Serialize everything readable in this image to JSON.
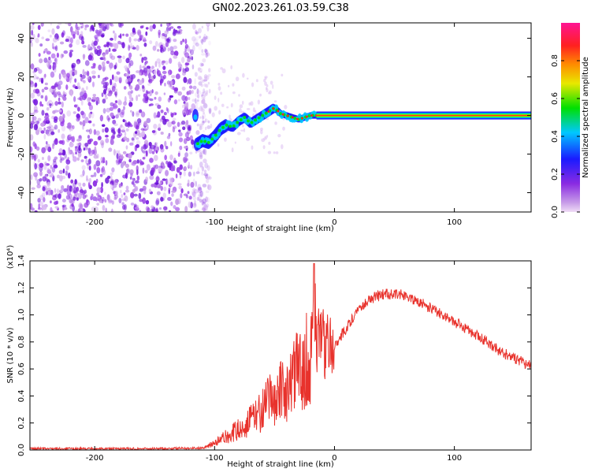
{
  "title": "GN02.2023.261.03.59.C38",
  "chart_data": [
    {
      "type": "heatmap",
      "xlabel": "Height of straight line (km)",
      "ylabel": "Frequency (Hz)",
      "xlim": [
        -254,
        164
      ],
      "ylim": [
        -50,
        48
      ],
      "x_ticks": [
        -200,
        -100,
        0,
        100
      ],
      "y_ticks": [
        -40,
        -20,
        0,
        20,
        40
      ],
      "colorbar": {
        "label": "Normalized spectral amplitude",
        "range": [
          0,
          1
        ],
        "ticks": [
          "0.0",
          "0.2",
          "0.4",
          "0.6",
          "0.8"
        ],
        "colors": [
          "#f0dcf6",
          "#8a2be2",
          "#1a1aff",
          "#00c8ff",
          "#00e000",
          "#e8e800",
          "#ff8c00",
          "#ff2020",
          "#ff1493"
        ]
      },
      "noise_region_x": [
        -254,
        -113
      ],
      "signal_track": {
        "x": [
          -115,
          -110,
          -105,
          -100,
          -95,
          -90,
          -85,
          -80,
          -75,
          -70,
          -65,
          -60,
          -55,
          -50,
          -45,
          -40,
          -35,
          -30,
          -25,
          -20,
          -15,
          164
        ],
        "y": [
          -15,
          -13,
          -14,
          -11,
          -7,
          -5,
          -6,
          -3,
          -1,
          -4,
          -2,
          0,
          2,
          4,
          1,
          0,
          -1,
          -2,
          -1,
          0,
          0,
          0
        ]
      }
    },
    {
      "type": "line",
      "xlabel": "Height of straight line (km)",
      "ylabel": "SNR (10 * v/v)",
      "y_multiplier": "(x10⁴)",
      "xlim": [
        -254,
        164
      ],
      "ylim": [
        0,
        1.4
      ],
      "x_ticks": [
        -200,
        -100,
        0,
        100
      ],
      "y_ticks": [
        "0.0",
        "0.2",
        "0.4",
        "0.6",
        "0.8",
        "1.0",
        "1.2",
        "1.4"
      ],
      "line_color": "#e8322c",
      "series": [
        {
          "x": [
            -254,
            -200,
            -150,
            -110,
            -100,
            -90,
            -80,
            -70,
            -60,
            -50,
            -40,
            -35,
            -30,
            -25,
            -20,
            -17,
            -15,
            -10,
            0,
            10,
            20,
            30,
            40,
            50,
            60,
            70,
            80,
            90,
            100,
            110,
            120,
            130,
            140,
            150,
            164
          ],
          "values": [
            0.01,
            0.01,
            0.01,
            0.015,
            0.05,
            0.1,
            0.15,
            0.22,
            0.3,
            0.4,
            0.45,
            0.5,
            0.6,
            0.65,
            0.7,
            1.35,
            0.85,
            0.8,
            0.78,
            0.9,
            1.05,
            1.12,
            1.15,
            1.16,
            1.14,
            1.1,
            1.05,
            1.0,
            0.95,
            0.9,
            0.84,
            0.78,
            0.72,
            0.68,
            0.62
          ]
        }
      ]
    }
  ]
}
